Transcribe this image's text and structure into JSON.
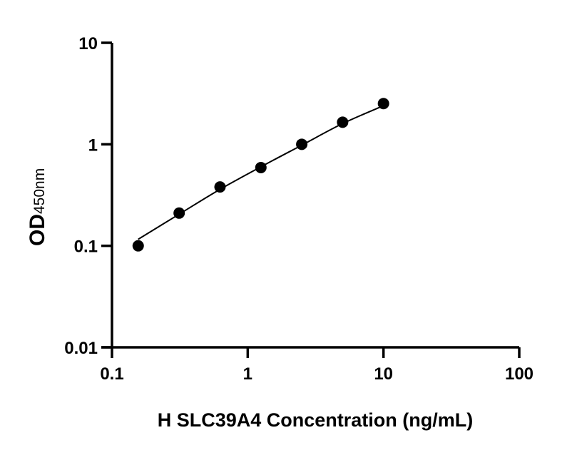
{
  "chart_data": {
    "type": "scatter",
    "title": "",
    "xlabel": "H SLC39A4 Concentration (ng/mL)",
    "ylabel_main": "OD",
    "ylabel_sub": "450nm",
    "x_scale": "log",
    "y_scale": "log",
    "xlim": [
      0.1,
      100
    ],
    "ylim": [
      0.01,
      10
    ],
    "x_ticks": [
      "0.1",
      "1",
      "10",
      "100"
    ],
    "x_tick_values": [
      0.1,
      1,
      10,
      100
    ],
    "y_ticks": [
      "0.01",
      "0.1",
      "1",
      "10"
    ],
    "y_tick_values": [
      0.01,
      0.1,
      1,
      10
    ],
    "grid": false,
    "points": {
      "x": [
        0.156,
        0.3125,
        0.625,
        1.25,
        2.5,
        5,
        10
      ],
      "y": [
        0.1,
        0.21,
        0.38,
        0.59,
        1.0,
        1.65,
        2.52
      ]
    },
    "fit_curve": {
      "x": [
        0.156,
        0.3125,
        0.625,
        1.25,
        2.5,
        5,
        10
      ],
      "y": [
        0.116,
        0.205,
        0.36,
        0.6,
        0.98,
        1.6,
        2.4
      ]
    },
    "marker_color": "#000000",
    "line_color": "#000000"
  }
}
